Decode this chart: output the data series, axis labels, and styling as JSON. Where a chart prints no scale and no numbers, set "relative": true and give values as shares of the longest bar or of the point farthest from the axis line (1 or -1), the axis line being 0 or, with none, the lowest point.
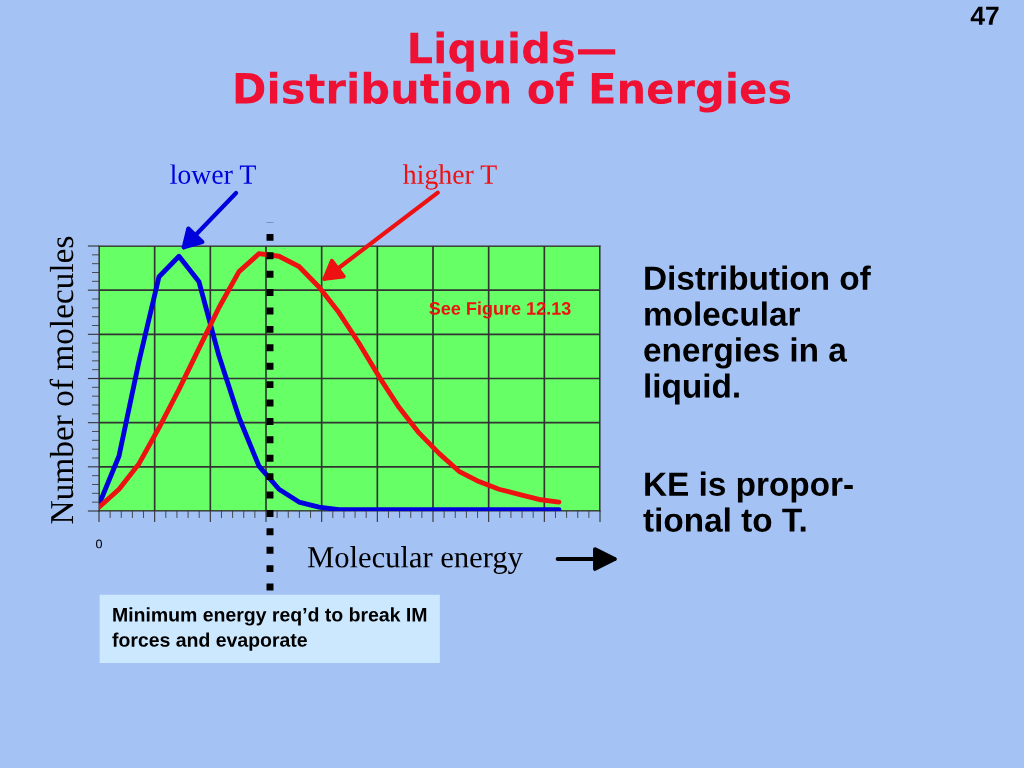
{
  "chart_data": {
    "type": "line",
    "title": "Liquids—\nDistribution of Energies",
    "xlabel": "Molecular energy",
    "ylabel": "Number of molecules",
    "relative": true,
    "grid": true,
    "legend": false,
    "tick_labels": false,
    "marker": "none",
    "line_style": "solid",
    "categories": [
      null,
      null,
      null,
      null,
      null,
      null,
      null,
      null,
      null,
      null,
      null,
      null,
      null,
      null,
      null,
      null,
      null,
      null,
      null,
      null,
      null,
      null,
      null,
      null
    ],
    "series": [
      {
        "name": "lower T",
        "color": "#0000dd",
        "values": [
          0.02,
          0.21,
          0.58,
          0.91,
          0.99,
          0.89,
          0.6,
          0.36,
          0.17,
          0.08,
          0.03,
          0.01,
          0,
          0,
          0,
          0,
          0,
          0,
          0,
          0,
          0,
          0,
          0,
          0
        ]
      },
      {
        "name": "higher T",
        "color": "#ee1111",
        "values": [
          0.01,
          0.08,
          0.18,
          0.32,
          0.47,
          0.63,
          0.79,
          0.93,
          1.0,
          0.99,
          0.95,
          0.87,
          0.77,
          0.65,
          0.52,
          0.4,
          0.3,
          0.22,
          0.15,
          0.11,
          0.08,
          0.06,
          0.04,
          0.03
        ]
      }
    ],
    "annotations": [
      "See Figure 12.13",
      "0",
      "47",
      "Distribution of\nmolecular\nenergies in a\nliquid.",
      "KE is propor-\ntional to T.",
      "Minimum energy req’d to break IM\nforces and evaporate"
    ]
  }
}
